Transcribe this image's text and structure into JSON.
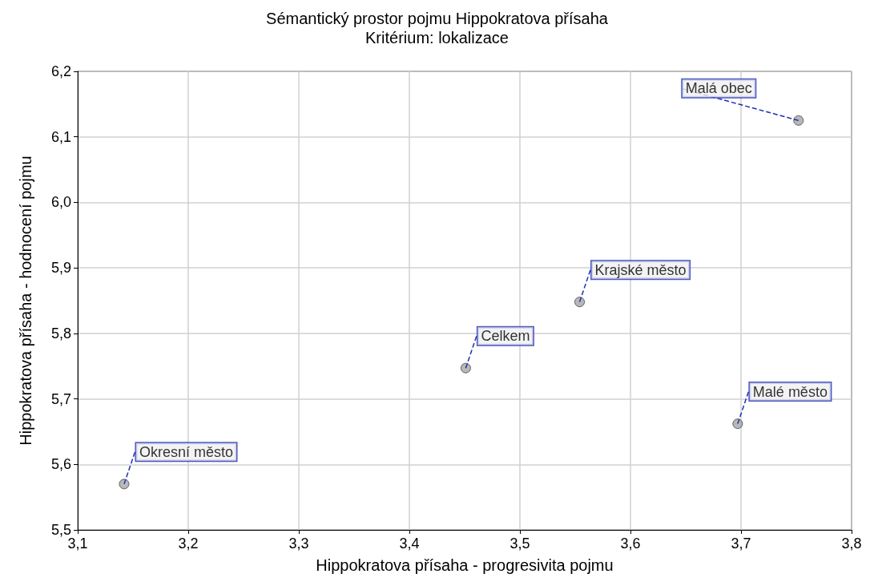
{
  "chart_data": {
    "type": "scatter",
    "title": "Sémantický prostor pojmu Hippokratova přísaha",
    "subtitle": "Kritérium: lokalizace",
    "xlabel": "Hippokratova přísaha - progresivita pojmu",
    "ylabel": "Hippokratova přísaha - hodnocení pojmu",
    "x": [
      3.142,
      3.451,
      3.554,
      3.697,
      3.752
    ],
    "values": [
      5.57,
      5.747,
      5.848,
      5.662,
      6.125
    ],
    "color": "#a6a6a6",
    "marker": "circle",
    "grid": true,
    "xlim": [
      3.1,
      3.8
    ],
    "ylim": [
      5.5,
      6.2
    ],
    "xticks": [
      {
        "value": 3.1,
        "label": "3,1"
      },
      {
        "value": 3.2,
        "label": "3,2"
      },
      {
        "value": 3.3,
        "label": "3,3"
      },
      {
        "value": 3.4,
        "label": "3,4"
      },
      {
        "value": 3.5,
        "label": "3,5"
      },
      {
        "value": 3.6,
        "label": "3,6"
      },
      {
        "value": 3.7,
        "label": "3,7"
      },
      {
        "value": 3.8,
        "label": "3,8"
      }
    ],
    "yticks": [
      {
        "value": 5.5,
        "label": "5,5"
      },
      {
        "value": 5.6,
        "label": "5,6"
      },
      {
        "value": 5.7,
        "label": "5,7"
      },
      {
        "value": 5.8,
        "label": "5,8"
      },
      {
        "value": 5.9,
        "label": "5,9"
      },
      {
        "value": 6.0,
        "label": "6,0"
      },
      {
        "value": 6.1,
        "label": "6,1"
      },
      {
        "value": 6.2,
        "label": "6,2"
      }
    ],
    "annotations": [
      {
        "text": "Okresní město",
        "x": 3.142,
        "y": 5.57
      },
      {
        "text": "Celkem",
        "x": 3.451,
        "y": 5.747
      },
      {
        "text": "Krajské město",
        "x": 3.554,
        "y": 5.848
      },
      {
        "text": "Malé město",
        "x": 3.697,
        "y": 5.662
      },
      {
        "text": "Malá obec",
        "x": 3.752,
        "y": 6.125
      }
    ]
  }
}
